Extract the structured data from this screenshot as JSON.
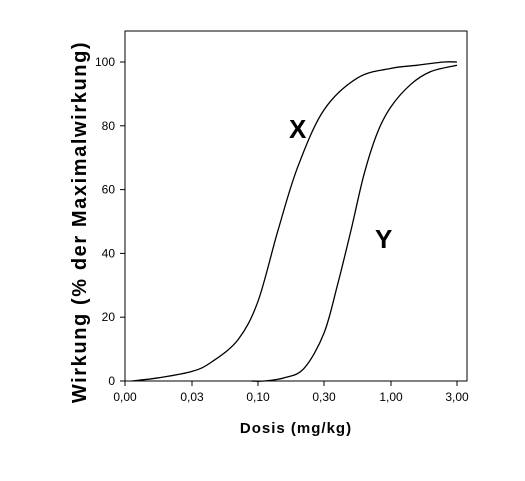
{
  "chart_data": {
    "type": "line",
    "xlabel": "Dosis (mg/kg)",
    "ylabel": "Wirkung (% der Maximalwirkung)",
    "x_ticks": [
      "0,00",
      "0,03",
      "0,10",
      "0,30",
      "1,00",
      "3,00"
    ],
    "y_ticks": [
      "0",
      "20",
      "40",
      "60",
      "80",
      "100"
    ],
    "ylim": [
      0,
      100
    ],
    "grid": false,
    "series": [
      {
        "name": "X",
        "x_tick_position": [
          0.1,
          0.5,
          1.0,
          1.3,
          1.7,
          2.0,
          2.3,
          2.6,
          3.0,
          3.5,
          4.0,
          4.4,
          4.8,
          5.0
        ],
        "values": [
          0,
          1,
          3,
          6,
          13,
          25,
          47,
          67,
          85,
          95,
          98,
          99,
          100,
          100
        ]
      },
      {
        "name": "Y",
        "x_tick_position": [
          1.9,
          2.1,
          2.4,
          2.7,
          3.0,
          3.2,
          3.4,
          3.6,
          3.8,
          4.0,
          4.3,
          4.6,
          5.0
        ],
        "values": [
          0,
          0,
          1,
          4,
          15,
          30,
          47,
          65,
          78,
          86,
          93,
          97,
          99
        ]
      }
    ],
    "labels": {
      "x": "X",
      "y": "Y"
    }
  }
}
